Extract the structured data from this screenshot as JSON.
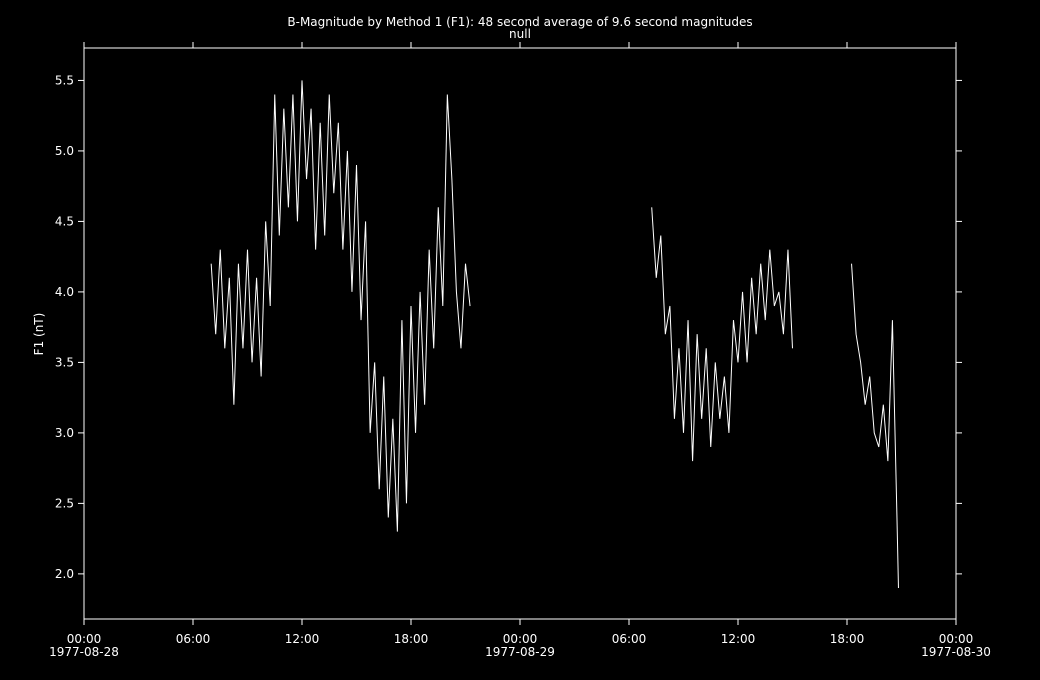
{
  "chart_data": {
    "type": "line",
    "title": "B-Magnitude by Method 1 (F1): 48 second average of 9.6 second magnitudes",
    "subtitle": "null",
    "y_label": "F1 (nT)",
    "color": "#ffffff",
    "xlim": [
      "1977-08-28 00:00",
      "1977-08-30 00:00"
    ],
    "xticks": [
      {
        "value": "1977-08-28 00:00",
        "label": "00:00"
      },
      {
        "value": "1977-08-28 06:00",
        "label": "06:00"
      },
      {
        "value": "1977-08-28 12:00",
        "label": "12:00"
      },
      {
        "value": "1977-08-28 18:00",
        "label": "18:00"
      },
      {
        "value": "1977-08-29 00:00",
        "label": "00:00"
      },
      {
        "value": "1977-08-29 06:00",
        "label": "06:00"
      },
      {
        "value": "1977-08-29 12:00",
        "label": "12:00"
      },
      {
        "value": "1977-08-29 18:00",
        "label": "18:00"
      },
      {
        "value": "1977-08-30 00:00",
        "label": "00:00"
      }
    ],
    "xtick_dates": [
      {
        "value": "1977-08-28 00:00",
        "label": "1977-08-28"
      },
      {
        "value": "1977-08-29 00:00",
        "label": "1977-08-29"
      },
      {
        "value": "1977-08-30 00:00",
        "label": "1977-08-30"
      }
    ],
    "ylim": [
      1.68,
      5.73
    ],
    "yticks": [
      {
        "value": 2,
        "label": "2.0"
      },
      2.5,
      {
        "value": 3,
        "label": "3.0"
      },
      3.5,
      {
        "value": 4,
        "label": "4.0"
      },
      4.5,
      {
        "value": 5,
        "label": "5.0"
      },
      5.5
    ],
    "x": [
      "1977-08-28 07:00",
      "1977-08-28 07:15",
      "1977-08-28 07:30",
      "1977-08-28 07:45",
      "1977-08-28 08:00",
      "1977-08-28 08:15",
      "1977-08-28 08:30",
      "1977-08-28 08:45",
      "1977-08-28 09:00",
      "1977-08-28 09:15",
      "1977-08-28 09:30",
      "1977-08-28 09:45",
      "1977-08-28 10:00",
      "1977-08-28 10:15",
      "1977-08-28 10:30",
      "1977-08-28 10:45",
      "1977-08-28 11:00",
      "1977-08-28 11:15",
      "1977-08-28 11:30",
      "1977-08-28 11:45",
      "1977-08-28 12:00",
      "1977-08-28 12:15",
      "1977-08-28 12:30",
      "1977-08-28 12:45",
      "1977-08-28 13:00",
      "1977-08-28 13:15",
      "1977-08-28 13:30",
      "1977-08-28 13:45",
      "1977-08-28 14:00",
      "1977-08-28 14:15",
      "1977-08-28 14:30",
      "1977-08-28 14:45",
      "1977-08-28 15:00",
      "1977-08-28 15:15",
      "1977-08-28 15:30",
      "1977-08-28 15:45",
      "1977-08-28 16:00",
      "1977-08-28 16:15",
      "1977-08-28 16:30",
      "1977-08-28 16:45",
      "1977-08-28 17:00",
      "1977-08-28 17:15",
      "1977-08-28 17:30",
      "1977-08-28 17:45",
      "1977-08-28 18:00",
      "1977-08-28 18:15",
      "1977-08-28 18:30",
      "1977-08-28 18:45",
      "1977-08-28 19:00",
      "1977-08-28 19:15",
      "1977-08-28 19:30",
      "1977-08-28 19:45",
      "1977-08-28 20:00",
      "1977-08-28 20:15",
      "1977-08-28 20:30",
      "1977-08-28 20:45",
      "1977-08-28 21:00",
      "1977-08-28 21:15",
      "1977-08-29 02:00",
      "1977-08-29 07:15",
      "1977-08-29 07:30",
      "1977-08-29 07:45",
      "1977-08-29 08:00",
      "1977-08-29 08:15",
      "1977-08-29 08:30",
      "1977-08-29 08:45",
      "1977-08-29 09:00",
      "1977-08-29 09:15",
      "1977-08-29 09:30",
      "1977-08-29 09:45",
      "1977-08-29 10:00",
      "1977-08-29 10:15",
      "1977-08-29 10:30",
      "1977-08-29 10:45",
      "1977-08-29 11:00",
      "1977-08-29 11:15",
      "1977-08-29 11:30",
      "1977-08-29 11:45",
      "1977-08-29 12:00",
      "1977-08-29 12:15",
      "1977-08-29 12:30",
      "1977-08-29 12:45",
      "1977-08-29 13:00",
      "1977-08-29 13:15",
      "1977-08-29 13:30",
      "1977-08-29 13:45",
      "1977-08-29 14:00",
      "1977-08-29 14:15",
      "1977-08-29 14:30",
      "1977-08-29 14:45",
      "1977-08-29 15:00",
      "1977-08-29 16:30",
      "1977-08-29 18:15",
      "1977-08-29 18:30",
      "1977-08-29 18:45",
      "1977-08-29 19:00",
      "1977-08-29 19:15",
      "1977-08-29 19:30",
      "1977-08-29 19:45",
      "1977-08-29 20:00",
      "1977-08-29 20:15",
      "1977-08-29 20:30",
      "1977-08-29 20:45",
      "1977-08-29 20:50"
    ],
    "values": [
      4.2,
      3.7,
      4.3,
      3.6,
      4.1,
      3.2,
      4.2,
      3.6,
      4.3,
      3.5,
      4.1,
      3.4,
      4.5,
      3.9,
      5.4,
      4.4,
      5.3,
      4.6,
      5.4,
      4.5,
      5.5,
      4.8,
      5.3,
      4.3,
      5.2,
      4.4,
      5.4,
      4.7,
      5.2,
      4.3,
      5.0,
      4.0,
      4.9,
      3.8,
      4.5,
      3.0,
      3.5,
      2.6,
      3.4,
      2.4,
      3.1,
      2.3,
      3.8,
      2.5,
      3.9,
      3.0,
      4.0,
      3.2,
      4.3,
      3.6,
      4.6,
      3.9,
      5.4,
      4.8,
      4.0,
      3.6,
      4.2,
      3.9,
      null,
      4.6,
      4.1,
      4.4,
      3.7,
      3.9,
      3.1,
      3.6,
      3.0,
      3.8,
      2.8,
      3.7,
      3.1,
      3.6,
      2.9,
      3.5,
      3.1,
      3.4,
      3.0,
      3.8,
      3.5,
      4.0,
      3.5,
      4.1,
      3.7,
      4.2,
      3.8,
      4.3,
      3.9,
      4.0,
      3.7,
      4.3,
      3.6,
      null,
      4.2,
      3.7,
      3.5,
      3.2,
      3.4,
      3.0,
      2.9,
      3.2,
      2.8,
      3.8,
      2.4,
      1.9
    ]
  }
}
